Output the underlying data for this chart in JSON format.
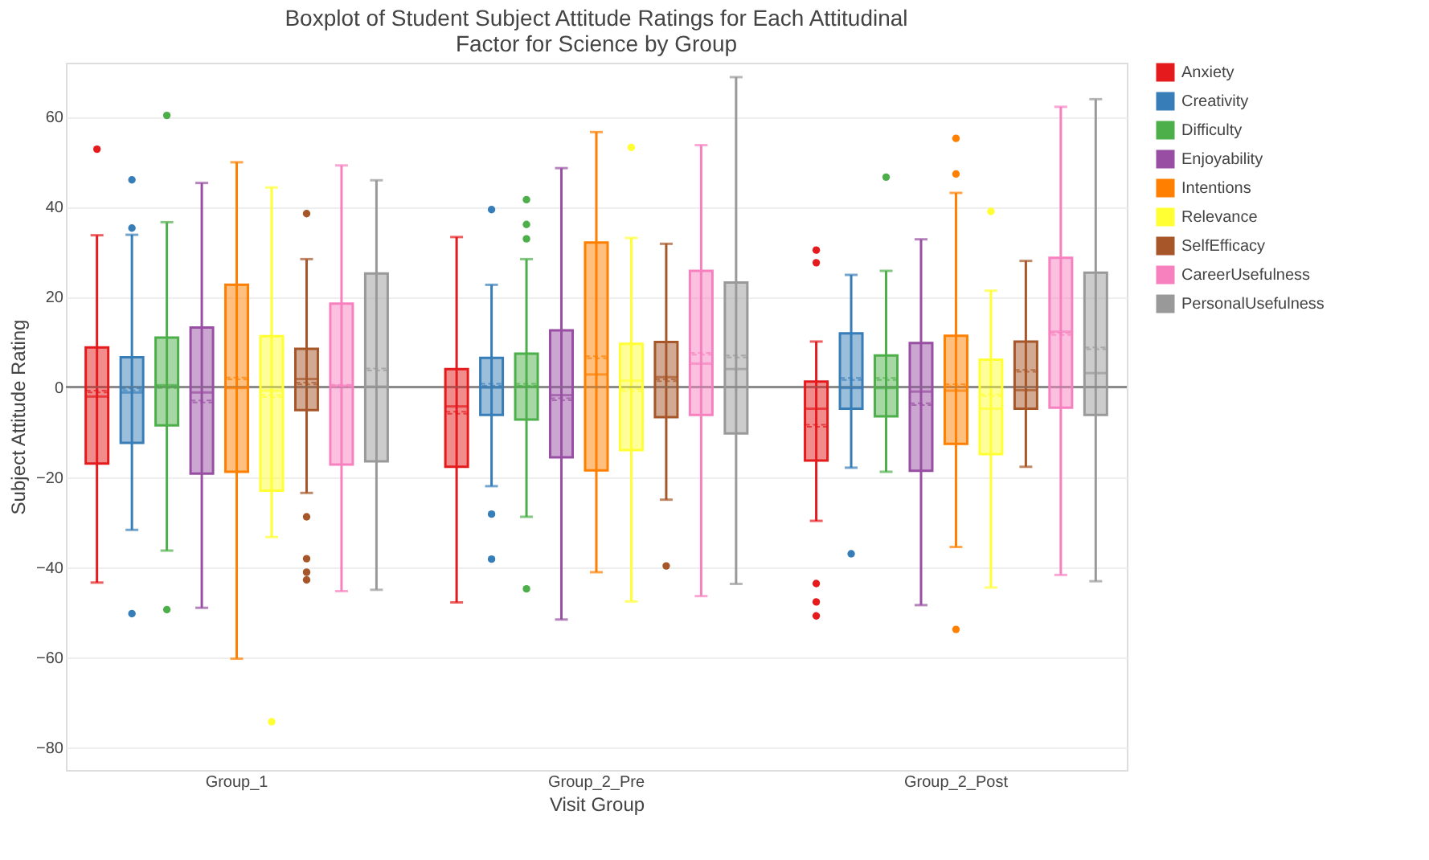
{
  "chart_data": {
    "type": "box",
    "title": "Boxplot of Student Subject Attitude Ratings for Each Attitudinal Factor for Science by Group",
    "xlabel": "Visit Group",
    "ylabel": "Subject Attitude Rating",
    "categories": [
      "Group_1",
      "Group_2_Pre",
      "Group_2_Post"
    ],
    "ylim": [
      -85,
      72
    ],
    "yticks": [
      -80,
      -60,
      -40,
      -20,
      0,
      20,
      40,
      60
    ],
    "grid": "y",
    "legend": "top right",
    "ref_lines": [
      {
        "axis": "y",
        "value": 0,
        "color": "#777777"
      }
    ],
    "series": [
      {
        "name": "Anxiety",
        "color": "#e41a1c",
        "boxes": [
          {
            "low": -43.4,
            "q1": -17,
            "median": -2.1,
            "q3": 8.8,
            "high": 33.7,
            "mean": -1,
            "outliers": [
              52.8
            ]
          },
          {
            "low": -47.8,
            "q1": -17.7,
            "median": -4.3,
            "q3": 4,
            "high": 33.3,
            "mean": -5.7
          },
          {
            "low": -29.7,
            "q1": -16.3,
            "median": -4.8,
            "q3": 1.2,
            "high": 10.1,
            "mean": -8.6,
            "outliers": [
              30.4,
              27.6,
              -43.6,
              -47.7,
              -50.8
            ]
          }
        ]
      },
      {
        "name": "Creativity",
        "color": "#377eb8",
        "boxes": [
          {
            "low": -31.7,
            "q1": -12.4,
            "median": -1.2,
            "q3": 6.6,
            "high": 33.8,
            "mean": -0.5,
            "outliers": [
              46,
              35.3,
              -50.3
            ]
          },
          {
            "low": -22,
            "q1": -6.2,
            "median": -0.1,
            "q3": 6.5,
            "high": 22.7,
            "mean": 0.5,
            "outliers": [
              39.4,
              -28.2,
              -38.2
            ]
          },
          {
            "low": -17.9,
            "q1": -4.8,
            "median": -0.2,
            "q3": 11.9,
            "high": 24.9,
            "mean": 1.8,
            "outliers": [
              -37
            ]
          }
        ]
      },
      {
        "name": "Difficulty",
        "color": "#4daf4a",
        "boxes": [
          {
            "low": -36.3,
            "q1": -8.5,
            "median": 0.4,
            "q3": 11,
            "high": 36.6,
            "mean": 0,
            "outliers": [
              60.3,
              -49.4
            ]
          },
          {
            "low": -28.8,
            "q1": -7.2,
            "median": 0.1,
            "q3": 7.4,
            "high": 28.4,
            "mean": 0.5,
            "outliers": [
              41.6,
              36.1,
              32.9,
              -44.8
            ]
          },
          {
            "low": -18.8,
            "q1": -6.5,
            "median": -0.2,
            "q3": 7,
            "high": 25.8,
            "mean": 1.8,
            "outliers": [
              46.6
            ]
          }
        ]
      },
      {
        "name": "Enjoyability",
        "color": "#984ea3",
        "boxes": [
          {
            "low": -49,
            "q1": -19.2,
            "median": -1.2,
            "q3": 13.2,
            "high": 45.3,
            "mean": -3.2
          },
          {
            "low": -51.6,
            "q1": -15.6,
            "median": -1.8,
            "q3": 12.6,
            "high": 48.6,
            "mean": -2.7
          },
          {
            "low": -48.4,
            "q1": -18.6,
            "median": -1,
            "q3": 9.8,
            "high": 32.8,
            "mean": -3.8
          }
        ]
      },
      {
        "name": "Intentions",
        "color": "#ff7f00",
        "boxes": [
          {
            "low": -60.3,
            "q1": -18.8,
            "median": -0.2,
            "q3": 22.7,
            "high": 49.9,
            "mean": 1.9
          },
          {
            "low": -41.1,
            "q1": -18.5,
            "median": 2.8,
            "q3": 32.1,
            "high": 56.6,
            "mean": 6.6
          },
          {
            "low": -35.5,
            "q1": -12.6,
            "median": -0.8,
            "q3": 11.4,
            "high": 43.1,
            "mean": 0.4,
            "outliers": [
              55.2,
              47.3,
              -53.8
            ]
          }
        ]
      },
      {
        "name": "Relevance",
        "color": "#ffff33",
        "boxes": [
          {
            "low": -33.3,
            "q1": -23,
            "median": -0.8,
            "q3": 11.3,
            "high": 44.3,
            "mean": -2,
            "outliers": [
              -74.3
            ]
          },
          {
            "low": -47.6,
            "q1": -14,
            "median": 1.4,
            "q3": 9.6,
            "high": 33.1,
            "mean": -0.7,
            "outliers": [
              53.2
            ]
          },
          {
            "low": -44.5,
            "q1": -14.9,
            "median": -4.8,
            "q3": 6.1,
            "high": 21.4,
            "mean": -1.8,
            "outliers": [
              39
            ]
          }
        ]
      },
      {
        "name": "SelfEfficacy",
        "color": "#a65628",
        "boxes": [
          {
            "low": -23.5,
            "q1": -5.1,
            "median": 1.8,
            "q3": 8.5,
            "high": 28.4,
            "mean": 0.8,
            "outliers": [
              38.5,
              -28.8,
              -38.1,
              -41.1,
              -42.8
            ]
          },
          {
            "low": -25,
            "q1": -6.7,
            "median": 2.2,
            "q3": 10,
            "high": 31.8,
            "mean": 1.5,
            "outliers": [
              -39.7
            ]
          },
          {
            "low": -17.7,
            "q1": -4.8,
            "median": -0.7,
            "q3": 10.1,
            "high": 28,
            "mean": 3.6
          }
        ]
      },
      {
        "name": "CareerUsefulness",
        "color": "#f781bf",
        "boxes": [
          {
            "low": -45.3,
            "q1": -17.2,
            "median": 0.3,
            "q3": 18.5,
            "high": 49.2,
            "mean": 0.3
          },
          {
            "low": -46.4,
            "q1": -6.2,
            "median": 5.2,
            "q3": 25.8,
            "high": 53.7,
            "mean": 7.4
          },
          {
            "low": -41.7,
            "q1": -4.6,
            "median": 12.3,
            "q3": 28.7,
            "high": 62.2,
            "mean": 11.8
          }
        ]
      },
      {
        "name": "PersonalUsefulness",
        "color": "#999999",
        "boxes": [
          {
            "low": -45,
            "q1": -16.5,
            "median": 0.1,
            "q3": 25.2,
            "high": 45.9,
            "mean": 3.9
          },
          {
            "low": -43.7,
            "q1": -10.3,
            "median": 4,
            "q3": 23.2,
            "high": 68.8,
            "mean": 6.8
          },
          {
            "low": -43.1,
            "q1": -6.2,
            "median": 3.1,
            "q3": 25.4,
            "high": 63.9,
            "mean": 8.6
          }
        ]
      }
    ]
  }
}
